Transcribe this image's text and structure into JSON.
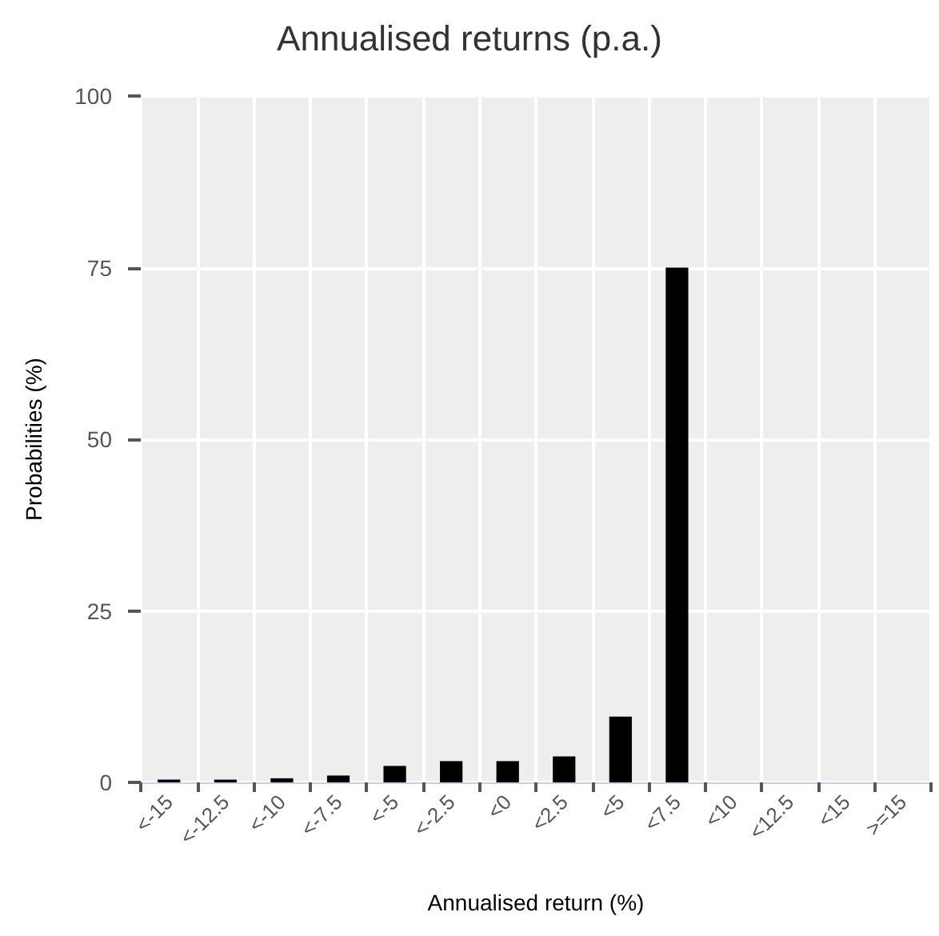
{
  "chart_data": {
    "type": "bar",
    "title": "Annualised returns (p.a.)",
    "xlabel": "Annualised return (%)",
    "ylabel": "Probabilities (%)",
    "categories": [
      "<-15",
      "<-12.5",
      "<-10",
      "<-7.5",
      "<-5",
      "<-2.5",
      "<0",
      "<2.5",
      "<5",
      "<7.5",
      "<10",
      "<12.5",
      "<15",
      ">=15"
    ],
    "values": [
      0.4,
      0.4,
      0.6,
      1.0,
      2.4,
      3.1,
      3.1,
      3.8,
      9.6,
      75,
      0,
      0,
      0,
      0
    ],
    "color": "#000000",
    "ylim": [
      0,
      100
    ],
    "yticks": [
      0,
      25,
      50,
      75,
      100
    ],
    "grid": true
  }
}
